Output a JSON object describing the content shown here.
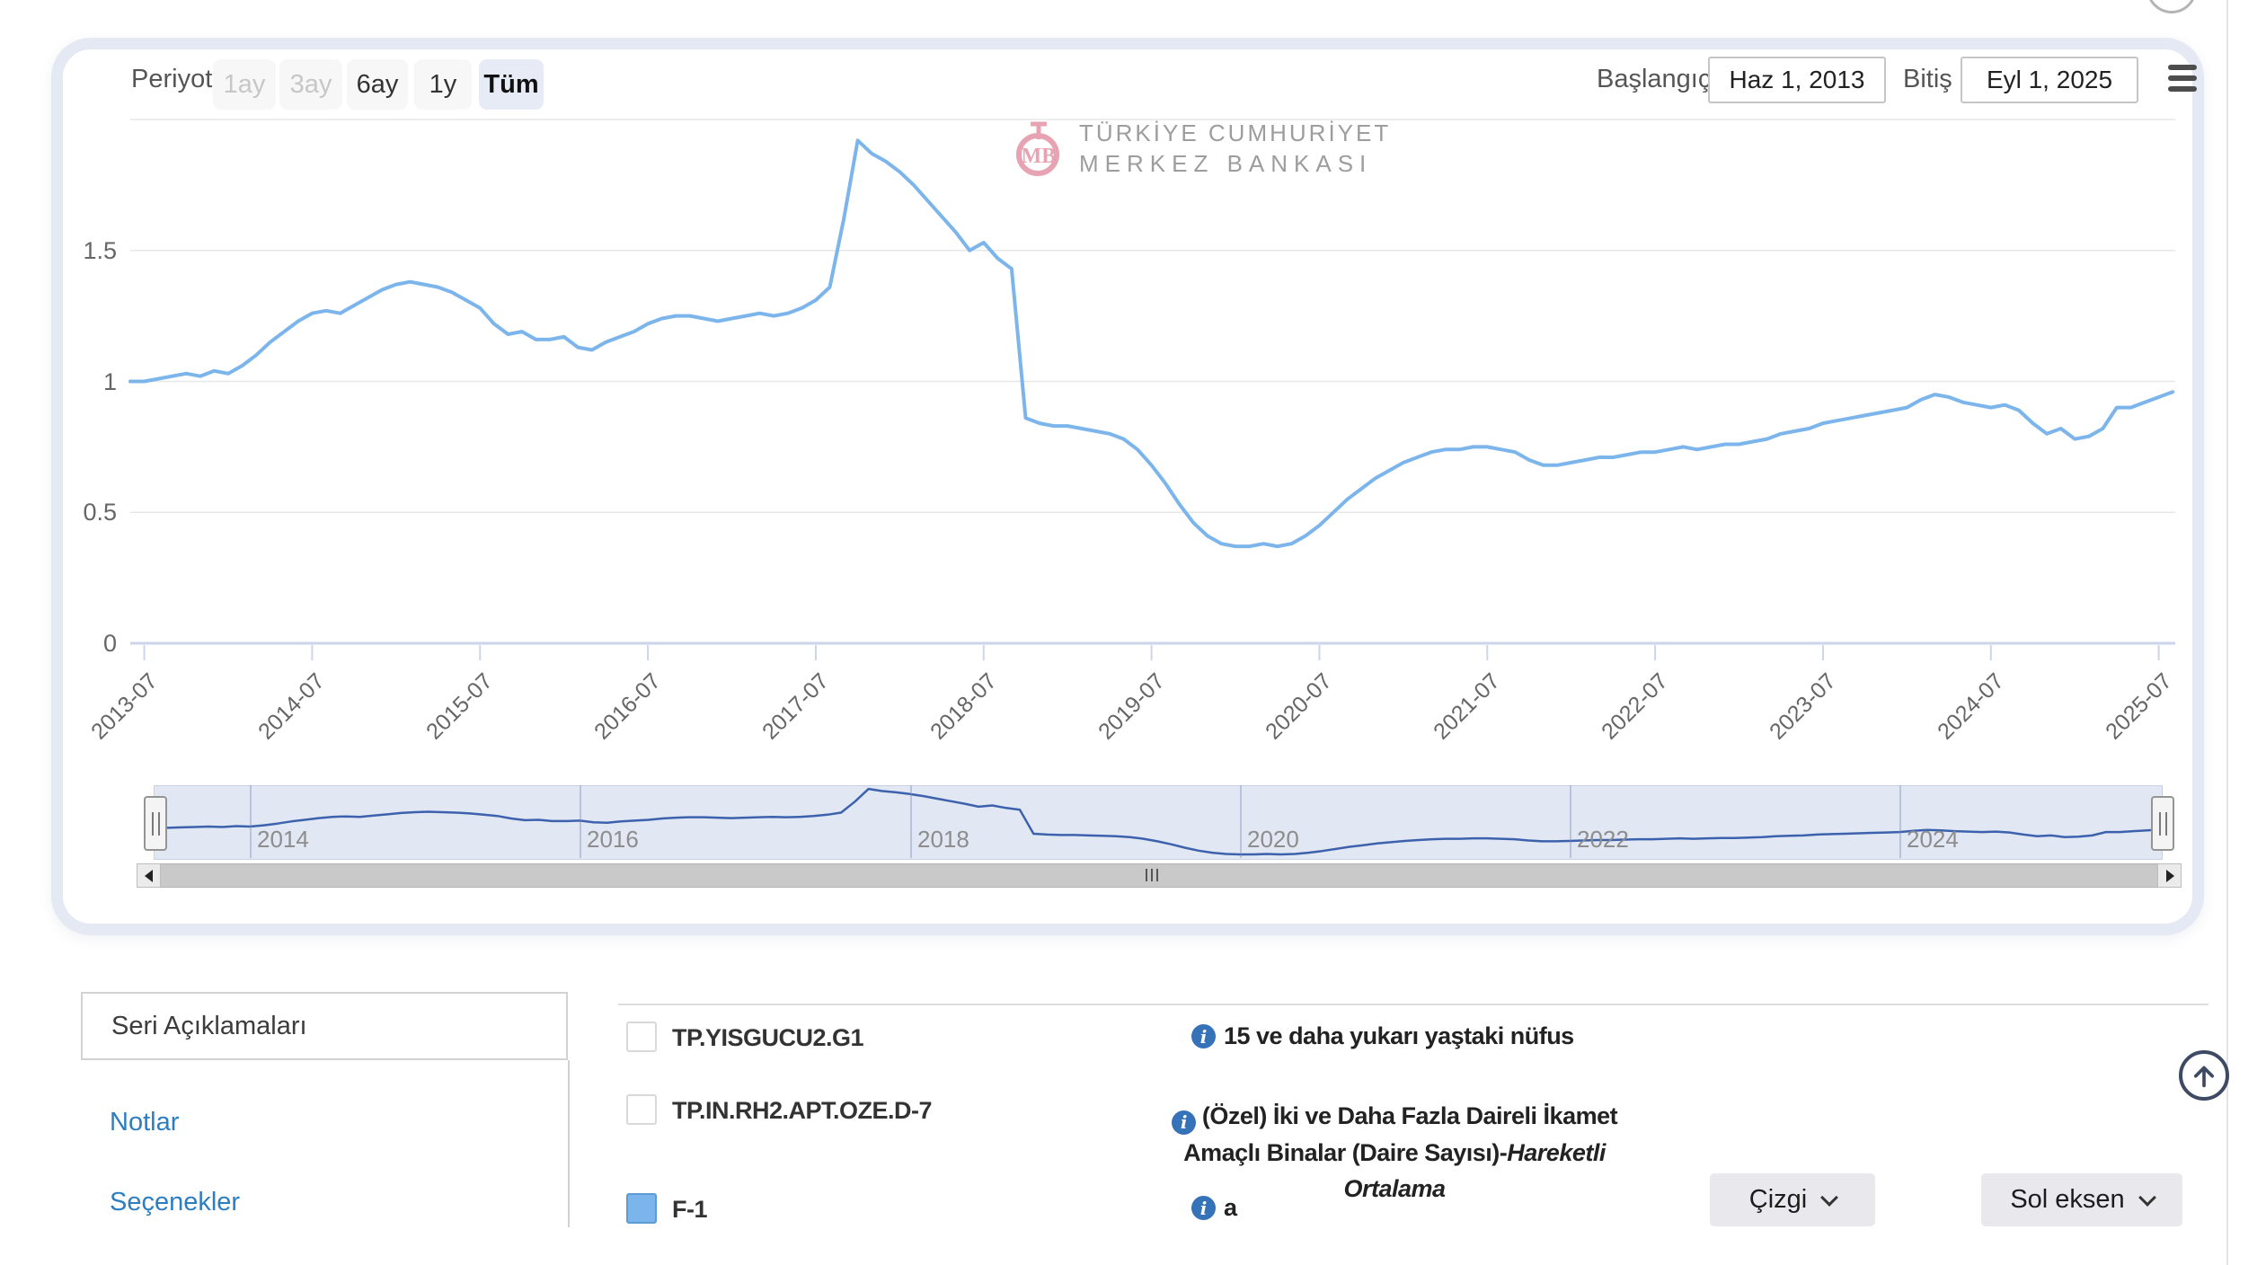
{
  "toolbar": {
    "period_label": "Periyot",
    "periods": [
      {
        "label": "1ay",
        "state": "disabled"
      },
      {
        "label": "3ay",
        "state": "disabled"
      },
      {
        "label": "6ay",
        "state": "normal"
      },
      {
        "label": "1y",
        "state": "normal"
      },
      {
        "label": "Tüm",
        "state": "selected"
      }
    ],
    "start_label": "Başlangıç",
    "start_value": "Haz 1, 2013",
    "end_label": "Bitiş",
    "end_value": "Eyl 1, 2025"
  },
  "watermark": {
    "emblem_text": "MB",
    "line1": "TÜRKİYE CUMHURİYET",
    "line2": "MERKEZ BANKASI"
  },
  "chart_data": {
    "type": "line",
    "x_start": "2013-06",
    "x_end": "2025-08",
    "frequency": "monthly",
    "ylim": [
      0,
      2
    ],
    "grid": true,
    "legend": "none",
    "series": [
      {
        "name": "F-1",
        "color": "#7cb5ec",
        "values": [
          1.0,
          1.0,
          1.01,
          1.02,
          1.03,
          1.02,
          1.04,
          1.03,
          1.06,
          1.1,
          1.15,
          1.19,
          1.23,
          1.26,
          1.27,
          1.26,
          1.29,
          1.32,
          1.35,
          1.37,
          1.38,
          1.37,
          1.36,
          1.34,
          1.31,
          1.28,
          1.22,
          1.18,
          1.19,
          1.16,
          1.16,
          1.17,
          1.13,
          1.12,
          1.15,
          1.17,
          1.19,
          1.22,
          1.24,
          1.25,
          1.25,
          1.24,
          1.23,
          1.24,
          1.25,
          1.26,
          1.25,
          1.26,
          1.28,
          1.31,
          1.36,
          1.62,
          1.92,
          1.87,
          1.84,
          1.8,
          1.75,
          1.69,
          1.63,
          1.57,
          1.5,
          1.53,
          1.47,
          1.43,
          0.86,
          0.84,
          0.83,
          0.83,
          0.82,
          0.81,
          0.8,
          0.78,
          0.74,
          0.68,
          0.61,
          0.53,
          0.46,
          0.41,
          0.38,
          0.37,
          0.37,
          0.38,
          0.37,
          0.38,
          0.41,
          0.45,
          0.5,
          0.55,
          0.59,
          0.63,
          0.66,
          0.69,
          0.71,
          0.73,
          0.74,
          0.74,
          0.75,
          0.75,
          0.74,
          0.73,
          0.7,
          0.68,
          0.68,
          0.69,
          0.7,
          0.71,
          0.71,
          0.72,
          0.73,
          0.73,
          0.74,
          0.75,
          0.74,
          0.75,
          0.76,
          0.76,
          0.77,
          0.78,
          0.8,
          0.81,
          0.82,
          0.84,
          0.85,
          0.86,
          0.87,
          0.88,
          0.89,
          0.9,
          0.93,
          0.95,
          0.94,
          0.92,
          0.91,
          0.9,
          0.91,
          0.89,
          0.84,
          0.8,
          0.82,
          0.78,
          0.79,
          0.82,
          0.9,
          0.9,
          0.92,
          0.94,
          0.96
        ]
      }
    ],
    "yticks": [
      {
        "label": "0",
        "value": 0
      },
      {
        "label": "0.5",
        "value": 0.5
      },
      {
        "label": "1",
        "value": 1
      },
      {
        "label": "1.5",
        "value": 1.5
      }
    ],
    "xticks": [
      "2013-07",
      "2014-07",
      "2015-07",
      "2016-07",
      "2017-07",
      "2018-07",
      "2019-07",
      "2020-07",
      "2021-07",
      "2022-07",
      "2023-07",
      "2024-07",
      "2025-07"
    ],
    "navigator": {
      "years": [
        "2014",
        "2016",
        "2018",
        "2020",
        "2022",
        "2024"
      ],
      "line_color": "#3d62ad",
      "mask_color": "#e1e7f3"
    }
  },
  "tabs": {
    "active": "Seri Açıklamaları",
    "link1": "Notlar",
    "link2": "Seçenekler"
  },
  "series_rows": [
    {
      "code": "TP.YISGUCU2.G1",
      "checked": false,
      "description": "15 ve daha yukarı yaştaki nüfus"
    },
    {
      "code": "TP.IN.RH2.APT.OZE.D-7",
      "checked": false,
      "description": "(Özel) İki ve Daha Fazla Daireli İkamet Amaçlı Binalar (Daire Sayısı)-",
      "description_italic": "Hareketli Ortalama"
    },
    {
      "code": "F-1",
      "checked": true,
      "checkbox_color": "#7cb5ec",
      "description": "a",
      "chart_type_value": "Çizgi",
      "axis_value": "Sol eksen"
    }
  ],
  "colors": {
    "series_line": "#7cb5ec",
    "navigator_line": "#3d62ad",
    "axis_line": "#ccd6eb",
    "card_border": "#e4e9f4",
    "link_blue": "#2d7dc1",
    "info_icon": "#3572b8",
    "selected_period_bg": "#e7ebf6"
  }
}
